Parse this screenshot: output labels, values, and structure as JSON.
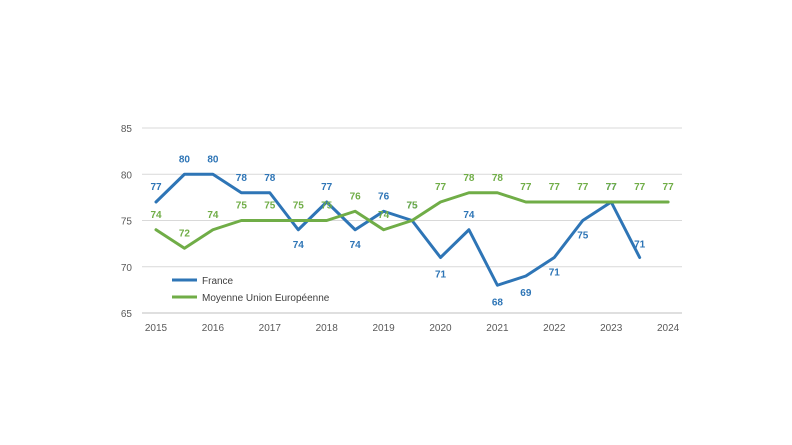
{
  "chart_data": {
    "type": "line",
    "ylim": [
      65,
      85
    ],
    "yticks": [
      65,
      70,
      75,
      80,
      85
    ],
    "xticks": [
      "2015",
      "2016",
      "2017",
      "2018",
      "2019",
      "2020",
      "2021",
      "2022",
      "2023",
      "2024"
    ],
    "grid": true,
    "legend_position": "lower-left",
    "series": [
      {
        "name": "France",
        "color": "#2E75B6",
        "values": [
          77,
          80,
          80,
          78,
          78,
          74,
          77,
          74,
          76,
          75,
          71,
          74,
          68,
          69,
          71,
          75,
          77,
          71
        ]
      },
      {
        "name": "Moyenne Union Européenne",
        "color": "#70AD47",
        "values": [
          74,
          72,
          74,
          75,
          75,
          75,
          75,
          76,
          74,
          75,
          77,
          78,
          78,
          77,
          77,
          77,
          77,
          77,
          77
        ]
      }
    ]
  }
}
